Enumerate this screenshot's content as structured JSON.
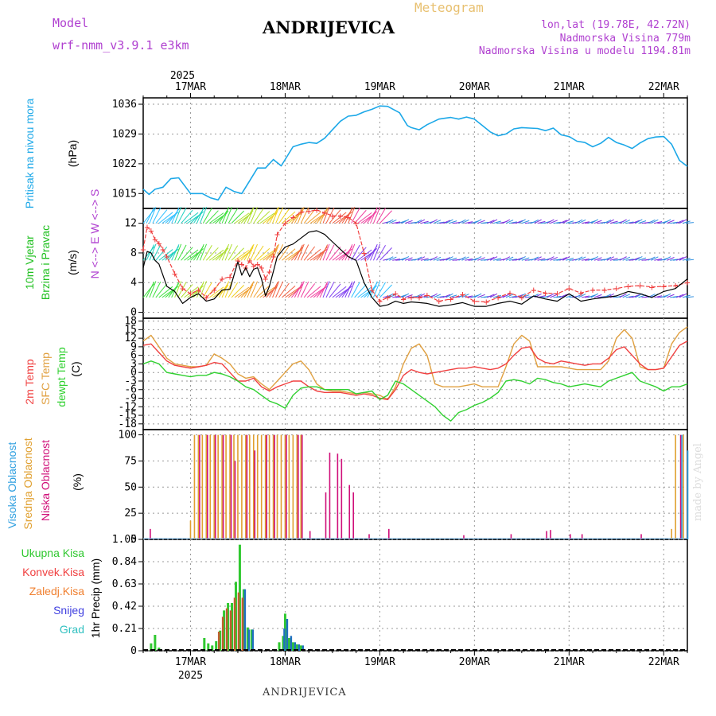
{
  "header": {
    "model_label": "Model",
    "model_name": "wrf-nmm_v3.9.1 e3km",
    "station": "ANDRIJEVICA",
    "meteogram": "Meteogram",
    "coords": "lon,lat (19.78E, 42.72N)",
    "altitude": "Nadmorska Visina 779m",
    "model_altitude": "Nadmorska Visina u modelu 1194.81m"
  },
  "footer": {
    "station": "ANDRIJEVICA",
    "credit": "made by Angel"
  },
  "colors": {
    "pressure": "#1ca8e8",
    "temp2m": "#f04040",
    "sfc": "#e0a040",
    "dewpt": "#30d030",
    "high_cloud": "#30a0e0",
    "mid_cloud": "#e0a030",
    "low_cloud": "#d0107a",
    "precip_total": "#30c830",
    "precip_conv": "#f04040",
    "snow": "#4040e0",
    "hail": "#30c0c0"
  },
  "chart_data": {
    "time_axis": {
      "year": "2025",
      "days": [
        "17MAR",
        "18MAR",
        "19MAR",
        "20MAR",
        "21MAR",
        "22MAR"
      ],
      "start_hours": 0,
      "end_hours": 138,
      "day_offsets_hours": [
        12,
        36,
        60,
        84,
        108,
        132
      ]
    },
    "pressure": {
      "type": "line",
      "ylabel": "Pritisak na nivou mora",
      "unit": "(hPa)",
      "yticks": [
        1015,
        1022,
        1029,
        1036
      ],
      "ylim": [
        1011.5,
        1037.5
      ],
      "x": [
        0,
        1.5,
        3,
        5,
        7,
        9,
        12,
        15,
        17,
        19,
        21,
        23,
        25,
        27,
        29,
        31,
        33,
        35,
        38,
        40,
        42,
        44,
        46,
        48,
        50,
        52,
        54,
        56,
        58,
        60,
        62,
        63,
        65,
        66,
        67,
        68,
        70,
        72,
        75,
        78,
        80,
        82,
        84,
        86,
        88,
        90,
        92,
        94,
        96,
        98,
        100,
        102,
        104,
        106,
        108,
        110,
        112,
        114,
        116,
        118,
        120,
        122,
        124,
        126,
        128,
        130,
        132,
        134,
        136,
        138
      ],
      "values": [
        1016,
        1014.8,
        1016,
        1016.5,
        1018.5,
        1018.7,
        1015,
        1015,
        1014,
        1013.5,
        1016.5,
        1015.5,
        1015,
        1018,
        1021,
        1021,
        1023,
        1021.5,
        1026,
        1026.6,
        1027,
        1026.8,
        1028,
        1030,
        1032,
        1033.2,
        1033.4,
        1034.2,
        1034.8,
        1035.6,
        1035.5,
        1035,
        1034,
        1032.5,
        1031,
        1030.5,
        1030,
        1031.2,
        1032.5,
        1032.9,
        1032.5,
        1033,
        1032.5,
        1031,
        1029.5,
        1028.6,
        1029,
        1030.2,
        1030.5,
        1030.4,
        1030.3,
        1029.8,
        1030.4,
        1028.8,
        1028.4,
        1027.3,
        1027,
        1026,
        1026.8,
        1028.2,
        1027,
        1026.4,
        1025.6,
        1026.9,
        1027.9,
        1028.3,
        1028.4,
        1026.6,
        1022.8,
        1021.4
      ]
    },
    "wind": {
      "type": "line",
      "ylabel": "10m Vjetar Brzina i Pravac",
      "unit": "(m/s)",
      "compass": "N <--> E W <--> S",
      "yticks": [
        0,
        4,
        8,
        12
      ],
      "ylim": [
        -0.8,
        14
      ],
      "x": [
        0,
        1,
        2,
        3,
        4,
        5,
        6,
        8,
        10,
        12,
        14,
        16,
        18,
        20,
        22,
        24,
        25,
        26,
        27,
        28,
        29,
        30,
        31,
        32,
        33,
        34,
        36,
        38,
        40,
        42,
        44,
        46,
        48,
        50,
        52,
        54,
        56,
        58,
        60,
        62,
        64,
        66,
        68,
        70,
        72,
        75,
        78,
        81,
        84,
        87,
        90,
        93,
        96,
        99,
        102,
        105,
        108,
        111,
        114,
        117,
        120,
        123,
        126,
        129,
        132,
        135,
        138
      ],
      "speed": [
        6,
        8.2,
        8,
        7,
        6.5,
        5,
        3.5,
        2.8,
        1.2,
        2,
        2.5,
        1.5,
        1.8,
        3,
        3.1,
        6.8,
        5,
        6,
        4.8,
        5.8,
        6,
        4.5,
        2.2,
        3.5,
        5.5,
        7.5,
        8.8,
        9.2,
        10,
        10.8,
        11,
        10.5,
        9.5,
        8.5,
        7.5,
        7,
        4,
        2,
        0.8,
        1,
        1.5,
        1.2,
        1.4,
        1.3,
        1.2,
        0.8,
        1,
        1.3,
        0.8,
        0.8,
        1.2,
        1.5,
        1.1,
        2.2,
        1.8,
        1.5,
        2.5,
        1.5,
        1.8,
        2,
        2.2,
        2.8,
        2.5,
        2,
        2.8,
        3.2,
        4.5
      ],
      "gust": [
        8.5,
        11.5,
        11,
        9.8,
        9.3,
        8.5,
        7.5,
        5.2,
        3.2,
        2.5,
        3,
        2,
        3,
        4.5,
        4.8,
        7,
        6.5,
        6,
        7,
        6.2,
        6.5,
        6,
        4.5,
        5.5,
        7.5,
        10.5,
        12,
        12.8,
        13.5,
        13.6,
        13.8,
        13.4,
        13,
        13,
        12.8,
        12,
        8,
        3,
        1.5,
        2,
        2.5,
        1.8,
        2,
        2,
        2.3,
        1.5,
        1.8,
        2.4,
        1.5,
        1.4,
        2,
        2.6,
        2,
        3,
        2.6,
        2.5,
        3.2,
        2.6,
        3,
        3,
        3.2,
        3.5,
        3.6,
        3.4,
        3.5,
        3.6,
        4
      ]
    },
    "temperature": {
      "type": "line",
      "ylabels": [
        "2m Temp",
        "SFC Temp",
        "dewpt Temp"
      ],
      "unit": "(C)",
      "yticks": [
        18,
        15,
        12,
        9,
        6,
        3,
        0,
        -3,
        -6,
        -9,
        -12,
        -15,
        -18
      ],
      "ylim": [
        -20,
        19
      ],
      "x": [
        0,
        2,
        4,
        6,
        8,
        10,
        12,
        14,
        16,
        18,
        20,
        22,
        24,
        26,
        28,
        30,
        32,
        34,
        36,
        38,
        40,
        42,
        44,
        46,
        48,
        50,
        52,
        54,
        56,
        58,
        60,
        62,
        64,
        66,
        68,
        70,
        72,
        74,
        76,
        78,
        80,
        82,
        84,
        86,
        88,
        90,
        92,
        94,
        96,
        98,
        100,
        102,
        104,
        106,
        108,
        110,
        112,
        114,
        116,
        118,
        120,
        122,
        124,
        126,
        128,
        130,
        132,
        134,
        136,
        138
      ],
      "temp2m": [
        9.5,
        10,
        7,
        4,
        2.5,
        2,
        1.5,
        2,
        2.5,
        3.5,
        3,
        0,
        -3,
        -3,
        -2,
        -5,
        -6.5,
        -5,
        -4,
        -3,
        -3,
        -5,
        -6.5,
        -7,
        -7,
        -7,
        -7.5,
        -8,
        -7.5,
        -8,
        -9,
        -9.5,
        -6,
        -1,
        1,
        0,
        -0.5,
        0,
        0.5,
        1,
        1.5,
        1.5,
        2,
        1.5,
        1,
        1.5,
        3,
        6,
        8.5,
        9,
        5,
        3.5,
        3,
        4,
        3.5,
        3,
        2.5,
        3,
        3,
        5,
        8,
        9,
        6,
        3,
        1,
        1,
        1.5,
        5.5,
        9.5,
        11
      ],
      "sfc": [
        11,
        13,
        9,
        5,
        3,
        2.5,
        2,
        2,
        2.5,
        6.5,
        5,
        3,
        -0.5,
        -2,
        -1.5,
        -4,
        -6,
        -3,
        0,
        3,
        4,
        1,
        -4,
        -6,
        -6.5,
        -6.5,
        -7,
        -7.5,
        -7,
        -7.5,
        -8,
        -9.5,
        -5,
        3,
        8.5,
        10,
        6,
        -4,
        -5,
        -5,
        -5,
        -4.5,
        -4,
        -5,
        -5,
        -5,
        2,
        10,
        13,
        11,
        2,
        2,
        2,
        2,
        1.5,
        1,
        1,
        1,
        1,
        4,
        12,
        15,
        12,
        2,
        1,
        1,
        1.5,
        10,
        14,
        16
      ],
      "dewpt": [
        3,
        4,
        3,
        0,
        -0.5,
        -1,
        -1.5,
        -1,
        -1,
        0,
        -0.5,
        -1.5,
        -3,
        -5,
        -6,
        -8,
        -10,
        -11,
        -12.5,
        -8,
        -5.5,
        -5,
        -5,
        -6,
        -6,
        -6,
        -6,
        -7.5,
        -7,
        -6.5,
        -9.5,
        -8,
        -3,
        -4,
        -6,
        -8,
        -10,
        -12,
        -15,
        -17,
        -14,
        -13,
        -11.5,
        -10.5,
        -9,
        -7,
        -3,
        -2.5,
        -3,
        -4,
        -2,
        -2.5,
        -3.5,
        -4,
        -5,
        -4.5,
        -4,
        -4.5,
        -5,
        -3,
        -2,
        -1,
        0,
        -3,
        -4,
        -5,
        -6.5,
        -5,
        -5,
        -4
      ]
    },
    "clouds": {
      "type": "bar",
      "ylabels": [
        "Visoka Oblacnost",
        "Srednja Oblacnost",
        "Niska Oblacnost"
      ],
      "unit": "(%)",
      "yticks": [
        0,
        25,
        50,
        75,
        100
      ],
      "ylim": [
        0,
        105
      ],
      "high": [
        [
          136,
          100
        ],
        [
          137.5,
          85
        ]
      ],
      "mid": [
        [
          12,
          18
        ],
        [
          13,
          100
        ],
        [
          14,
          100
        ],
        [
          15,
          100
        ],
        [
          16,
          100
        ],
        [
          17,
          100
        ],
        [
          18,
          100
        ],
        [
          19,
          100
        ],
        [
          20,
          100
        ],
        [
          21,
          100
        ],
        [
          22,
          100
        ],
        [
          23,
          100
        ],
        [
          24,
          100
        ],
        [
          25,
          100
        ],
        [
          26,
          100
        ],
        [
          27,
          100
        ],
        [
          28,
          100
        ],
        [
          29,
          100
        ],
        [
          30,
          100
        ],
        [
          31,
          100
        ],
        [
          32,
          100
        ],
        [
          33,
          100
        ],
        [
          34,
          100
        ],
        [
          35,
          100
        ],
        [
          36,
          100
        ],
        [
          37,
          100
        ],
        [
          38,
          100
        ],
        [
          39,
          100
        ],
        [
          40,
          100
        ],
        [
          134,
          10
        ],
        [
          135,
          100
        ],
        [
          136.5,
          28
        ],
        [
          137,
          100
        ]
      ],
      "low": [
        [
          1.5,
          10
        ],
        [
          14,
          100
        ],
        [
          16,
          100
        ],
        [
          18,
          100
        ],
        [
          20,
          100
        ],
        [
          22,
          100
        ],
        [
          23,
          75
        ],
        [
          26,
          100
        ],
        [
          28,
          85
        ],
        [
          31,
          100
        ],
        [
          33,
          100
        ],
        [
          36,
          100
        ],
        [
          39,
          100
        ],
        [
          40,
          100
        ],
        [
          42,
          8
        ],
        [
          46,
          45
        ],
        [
          47,
          83
        ],
        [
          49,
          82
        ],
        [
          50,
          77
        ],
        [
          52,
          52
        ],
        [
          53,
          45
        ],
        [
          57,
          5
        ],
        [
          62,
          10
        ],
        [
          81,
          4
        ],
        [
          93,
          5
        ],
        [
          102,
          8
        ],
        [
          103,
          9
        ],
        [
          108,
          5
        ],
        [
          111,
          5
        ],
        [
          126,
          5
        ],
        [
          136,
          100
        ]
      ]
    },
    "precip": {
      "type": "bar",
      "ylabels": [
        "Ukupna Kisa",
        "Konvek.Kisa",
        "Zaledj.Kisa",
        "Snijeg",
        "Grad"
      ],
      "unit": "1hr Precip (mm)",
      "yticks": [
        0,
        0.21,
        0.42,
        0.63,
        0.84,
        1.05
      ],
      "ylim": [
        0,
        1.05
      ],
      "total": [
        [
          2,
          0.07
        ],
        [
          3,
          0.15
        ],
        [
          4,
          0.03
        ],
        [
          15.5,
          0.12
        ],
        [
          16.5,
          0.07
        ],
        [
          17.5,
          0.05
        ],
        [
          18.5,
          0.09
        ],
        [
          19.5,
          0.19
        ],
        [
          20.5,
          0.38
        ],
        [
          21.5,
          0.45
        ],
        [
          22.5,
          0.45
        ],
        [
          23.5,
          0.65
        ],
        [
          24.5,
          1.0
        ],
        [
          25.5,
          0.58
        ],
        [
          26.5,
          0.22
        ],
        [
          27.5,
          0.2
        ],
        [
          34.5,
          0.08
        ],
        [
          35.5,
          0.14
        ],
        [
          36,
          0.35
        ],
        [
          37,
          0.12
        ],
        [
          38,
          0.08
        ],
        [
          39,
          0.06
        ],
        [
          40,
          0.05
        ]
      ],
      "convective": [
        [
          19,
          0.18
        ],
        [
          20,
          0.32
        ],
        [
          21,
          0.4
        ],
        [
          22,
          0.38
        ],
        [
          23,
          0.5
        ],
        [
          24,
          0.55
        ],
        [
          25,
          0.5
        ]
      ],
      "snow": [
        [
          25.8,
          0.58
        ],
        [
          26.8,
          0.2
        ],
        [
          27.8,
          0.2
        ],
        [
          35.8,
          0.21
        ],
        [
          36.5,
          0.3
        ],
        [
          37.5,
          0.14
        ],
        [
          38.5,
          0.08
        ],
        [
          39.5,
          0.06
        ],
        [
          40.5,
          0.05
        ]
      ]
    }
  }
}
